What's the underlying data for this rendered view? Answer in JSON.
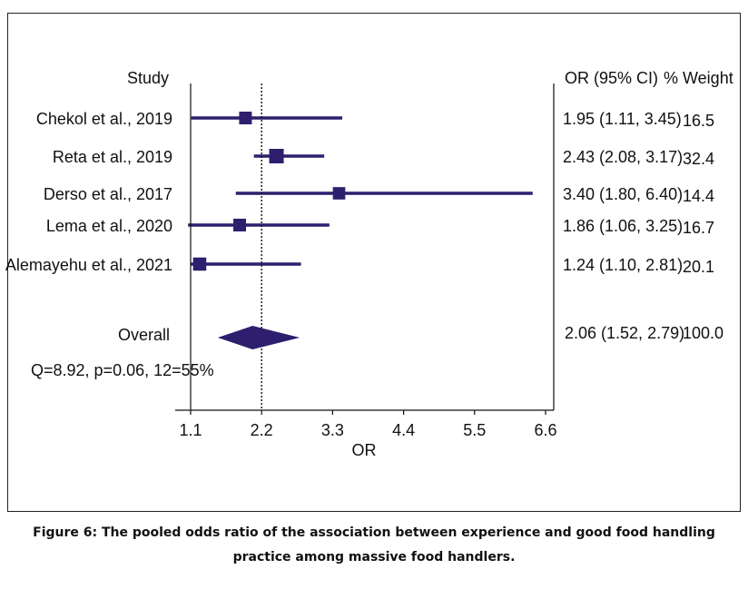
{
  "chart_data": {
    "type": "forest",
    "columns": {
      "study": "Study",
      "ci": "OR (95% CI)",
      "weight": "% Weight"
    },
    "studies": [
      {
        "name": "Chekol et al., 2019",
        "or": 1.95,
        "lower": 1.11,
        "upper": 3.45,
        "ci_text": "1.95 (1.11, 3.45)",
        "weight": 16.5,
        "weight_text": "16.5"
      },
      {
        "name": "Reta et al., 2019",
        "or": 2.43,
        "lower": 2.08,
        "upper": 3.17,
        "ci_text": "2.43 (2.08, 3.17)",
        "weight": 32.4,
        "weight_text": "32.4"
      },
      {
        "name": "Derso et al., 2017",
        "or": 3.4,
        "lower": 1.8,
        "upper": 6.4,
        "ci_text": "3.40 (1.80, 6.40)",
        "weight": 14.4,
        "weight_text": "14.4"
      },
      {
        "name": "Lema et al., 2020",
        "or": 1.86,
        "lower": 1.06,
        "upper": 3.25,
        "ci_text": "1.86 (1.06, 3.25)",
        "weight": 16.7,
        "weight_text": "16.7"
      },
      {
        "name": "Alemayehu et al., 2021",
        "or": 1.24,
        "lower": 1.1,
        "upper": 2.81,
        "ci_text": "1.24 (1.10, 2.81)",
        "weight": 20.1,
        "weight_text": "20.1"
      }
    ],
    "overall": {
      "label": "Overall",
      "or": 2.06,
      "lower": 1.52,
      "upper": 2.79,
      "ci_text": "2.06 (1.52, 2.79)",
      "weight_text": "100.0"
    },
    "heterogeneity": "Q=8.92, p=0.06, 12=55%",
    "xlabel": "OR",
    "xticks": [
      1.1,
      2.2,
      3.3,
      4.4,
      5.5,
      6.6
    ],
    "xtick_labels": [
      "1.1",
      "2.2",
      "3.3",
      "4.4",
      "5.5",
      "6.6"
    ],
    "xlim": [
      1.1,
      6.6
    ],
    "null_line": 1.1,
    "pooled_line": 2.2,
    "color": "#2e1f6e"
  },
  "caption": {
    "line1": "Figure 6: The pooled odds ratio of the association between experience and good food handling",
    "line2": "practice among massive food handlers."
  }
}
